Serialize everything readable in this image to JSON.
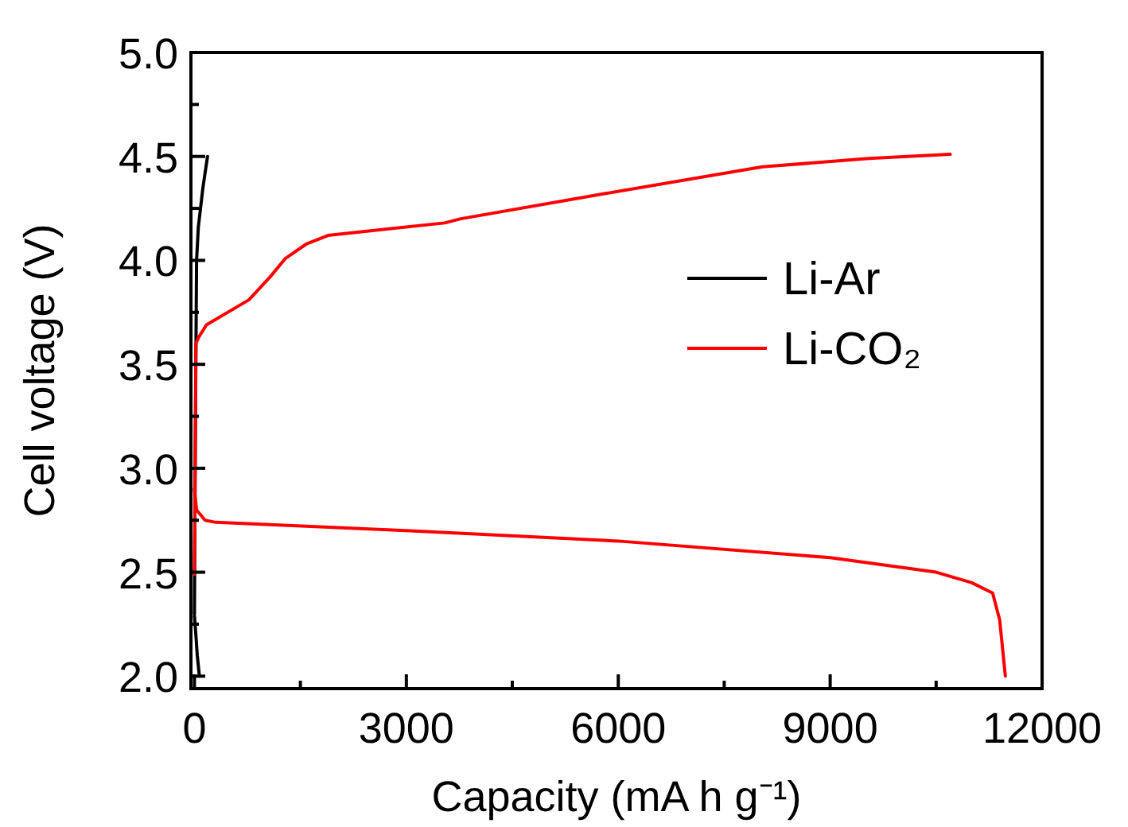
{
  "chart_data": {
    "type": "line",
    "xlabel": "Capacity (mA h g⁻¹)",
    "ylabel": "Cell voltage (V)",
    "xlim": [
      -50,
      12000
    ],
    "ylim": [
      1.94,
      5.0
    ],
    "xticks": [
      0,
      {
        "value": 1500,
        "label": null
      },
      3000,
      {
        "value": 4500,
        "label": null
      },
      6000,
      {
        "value": 7500,
        "label": null
      },
      9000,
      {
        "value": 10500,
        "label": null
      },
      12000
    ],
    "yticks": [
      {
        "value": 2,
        "label": "2.0"
      },
      {
        "value": 2.25,
        "label": null
      },
      {
        "value": 2.5,
        "label": "2.5"
      },
      {
        "value": 2.75,
        "label": null
      },
      {
        "value": 3,
        "label": "3.0"
      },
      {
        "value": 3.25,
        "label": null
      },
      {
        "value": 3.5,
        "label": "3.5"
      },
      {
        "value": 3.75,
        "label": null
      },
      {
        "value": 4,
        "label": "4.0"
      },
      {
        "value": 4.25,
        "label": null
      },
      {
        "value": 4.5,
        "label": "4.5"
      },
      {
        "value": 4.75,
        "label": null
      },
      {
        "value": 5,
        "label": "5.0"
      }
    ],
    "grid": false,
    "legend": "right",
    "marker": "none",
    "line_style": "solid",
    "series": [
      {
        "name": "Li-Ar",
        "color": "#000000",
        "x": [
          0,
          20,
          40,
          70,
          null,
          0,
          10,
          30,
          55,
          120,
          185
        ],
        "values": [
          2.29,
          2.2,
          2.1,
          2.0,
          null,
          2.3,
          3.0,
          4.0,
          4.16,
          4.35,
          4.5
        ]
      },
      {
        "name": "Li-CO₂",
        "color": "#ff0000",
        "x": [
          0,
          10,
          20,
          60,
          170,
          770,
          1070,
          1290,
          1590,
          1890,
          3540,
          3770,
          5790,
          8040,
          9545,
          10700,
          null,
          0,
          30,
          150,
          300,
          3000,
          6000,
          9000,
          10500,
          11000,
          11300,
          11400,
          11480
        ],
        "values": [
          2.49,
          3.0,
          3.6,
          3.63,
          3.69,
          3.81,
          3.92,
          4.01,
          4.08,
          4.12,
          4.18,
          4.2,
          4.32,
          4.45,
          4.49,
          4.51,
          null,
          2.9,
          2.8,
          2.75,
          2.74,
          2.7,
          2.65,
          2.57,
          2.5,
          2.45,
          2.4,
          2.27,
          2.0
        ]
      }
    ]
  }
}
